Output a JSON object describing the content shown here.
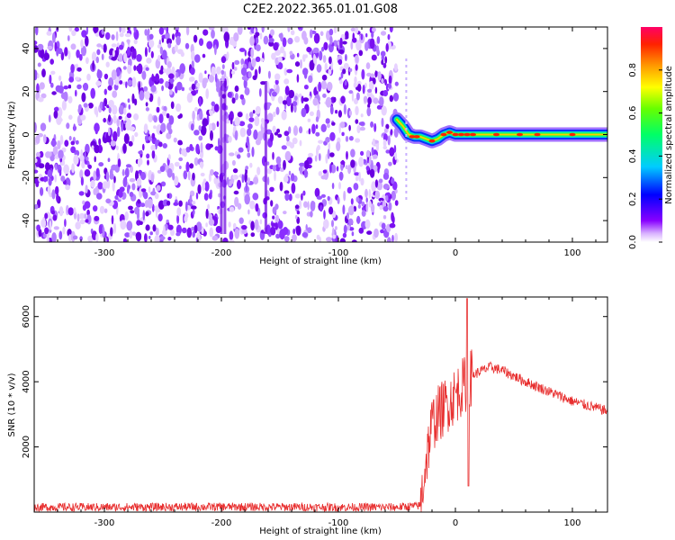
{
  "title": "C2E2.2022.365.01.01.G08",
  "chart_data": [
    {
      "type": "heatmap",
      "title": "C2E2.2022.365.01.01.G08",
      "xlabel": "Height of straight line (km)",
      "ylabel": "Frequency (Hz)",
      "xlim": [
        -360,
        130
      ],
      "ylim": [
        -50,
        50
      ],
      "x_ticks": [
        -300,
        -200,
        -100,
        0,
        100
      ],
      "x_tick_labels": [
        "-300",
        "-200",
        "-100",
        "0",
        "100"
      ],
      "y_ticks": [
        -40,
        -20,
        0,
        20,
        40
      ],
      "y_tick_labels": [
        "-40",
        "-20",
        "0",
        "20",
        "40"
      ],
      "noise_region_x": [
        -360,
        -50
      ],
      "ridge": {
        "x": [
          -50,
          -45,
          -40,
          -35,
          -30,
          -25,
          -20,
          -15,
          -10,
          -5,
          0,
          20,
          60,
          100,
          130
        ],
        "y": [
          7,
          4,
          0,
          -1,
          -1,
          -2,
          -3,
          -2,
          0,
          1,
          0,
          0,
          0,
          0,
          0
        ]
      },
      "colorbar": {
        "label": "Normalized spectral amplitude",
        "range": [
          0,
          1
        ],
        "ticks": [
          0.0,
          0.2,
          0.4,
          0.6,
          0.8
        ],
        "tick_labels": [
          "0.0",
          "0.2",
          "0.4",
          "0.6",
          "0.8"
        ],
        "colormap": "hsv-rainbow"
      }
    },
    {
      "type": "line",
      "xlabel": "Height of straight line (km)",
      "ylabel": "SNR (10 * v/v)",
      "xlim": [
        -360,
        130
      ],
      "ylim": [
        0,
        6600
      ],
      "x_ticks": [
        -300,
        -200,
        -100,
        0,
        100
      ],
      "x_tick_labels": [
        "-300",
        "-200",
        "-100",
        "0",
        "100"
      ],
      "y_ticks": [
        2000,
        4000,
        6000
      ],
      "y_tick_labels": [
        "2000",
        "4000",
        "6000"
      ],
      "series": [
        {
          "color": "#e83030",
          "x": [
            -360,
            -300,
            -200,
            -100,
            -50,
            -30,
            -25,
            -20,
            -15,
            -10,
            -5,
            0,
            5,
            10,
            15,
            20,
            30,
            40,
            60,
            80,
            100,
            130
          ],
          "y": [
            150,
            150,
            160,
            150,
            150,
            200,
            1600,
            2700,
            3000,
            3200,
            3400,
            3600,
            3800,
            4000,
            4200,
            4300,
            4450,
            4350,
            4000,
            3700,
            3400,
            3100
          ]
        }
      ]
    }
  ]
}
